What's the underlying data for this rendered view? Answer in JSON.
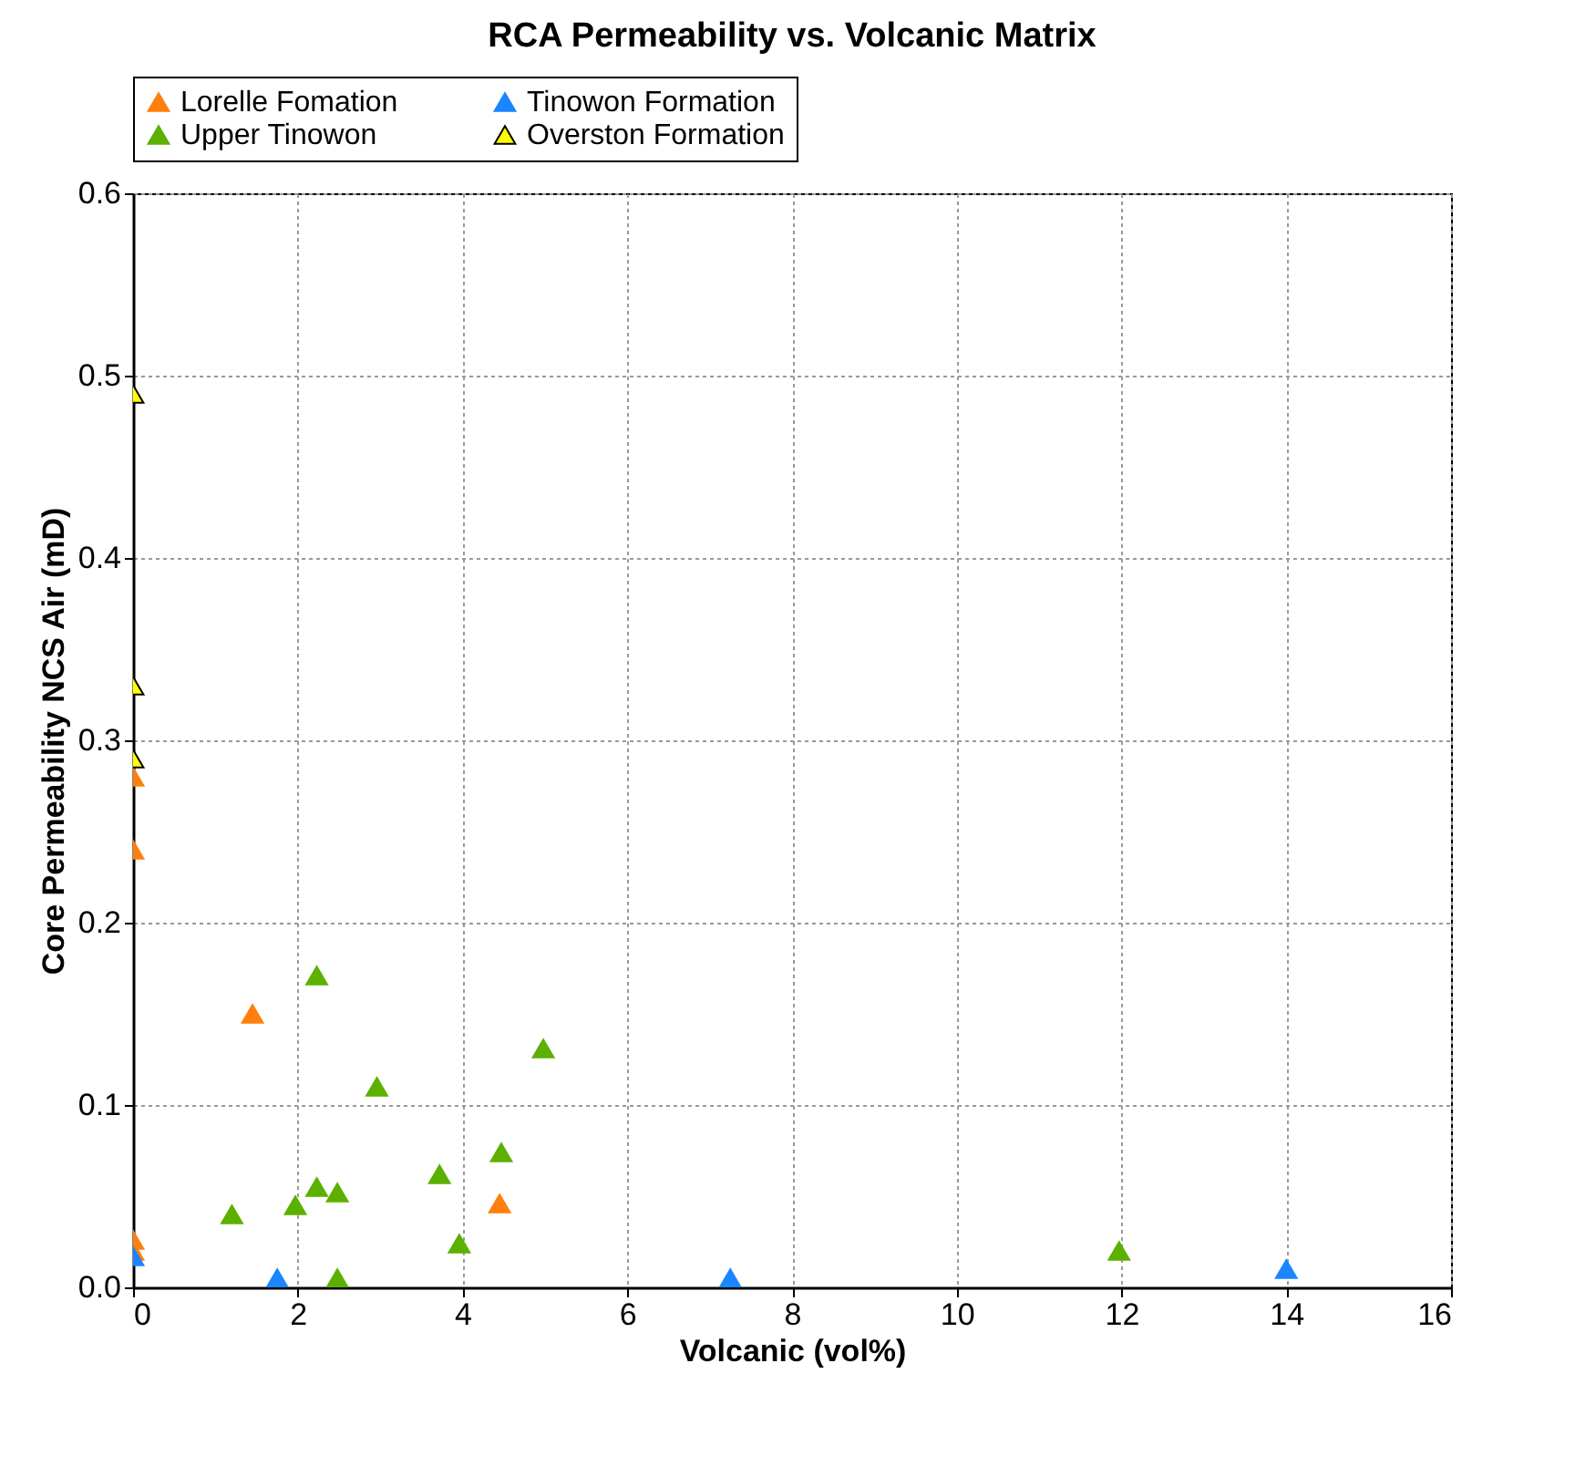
{
  "chart_data": {
    "type": "scatter",
    "title": "RCA Permeability vs. Volcanic Matrix",
    "xlabel": "Volcanic (vol%)",
    "ylabel": "Core Permeability NCS Air (mD)",
    "xlim": [
      0,
      16
    ],
    "xticks": [
      0,
      2,
      4,
      6,
      8,
      10,
      12,
      14,
      16
    ],
    "ylim": [
      0,
      0.6
    ],
    "yticks": [
      {
        "value": 0,
        "label": "0.0"
      },
      0.1,
      0.2,
      0.3,
      0.4,
      0.5,
      0.6
    ],
    "grid": true,
    "legend": "top",
    "marker": "triangle",
    "series": [
      {
        "name": "Lorelle Fomation",
        "color": "#ff7f0e",
        "x": [
          0,
          0,
          0,
          0,
          1.45,
          4.45
        ],
        "values": [
          0.28,
          0.24,
          0.026,
          0.02,
          0.15,
          0.046
        ]
      },
      {
        "name": "Tinowon Formation",
        "color": "#1a86ff",
        "x": [
          0,
          1.75,
          7.25,
          14
        ],
        "values": [
          0.017,
          0.005,
          0.005,
          0.01
        ]
      },
      {
        "name": "Upper Tinowon",
        "color": "#5cb000",
        "x": [
          1.2,
          1.97,
          2.23,
          2.23,
          2.48,
          2.48,
          2.96,
          3.72,
          3.96,
          4.47,
          4.98,
          11.97
        ],
        "values": [
          0.04,
          0.045,
          0.171,
          0.055,
          0.052,
          0.005,
          0.11,
          0.062,
          0.024,
          0.074,
          0.131,
          0.02
        ]
      },
      {
        "name": "Overston Formation",
        "color": "#ffff00",
        "x": [
          0,
          0,
          0
        ],
        "values": [
          0.49,
          0.33,
          0.29
        ]
      }
    ]
  }
}
